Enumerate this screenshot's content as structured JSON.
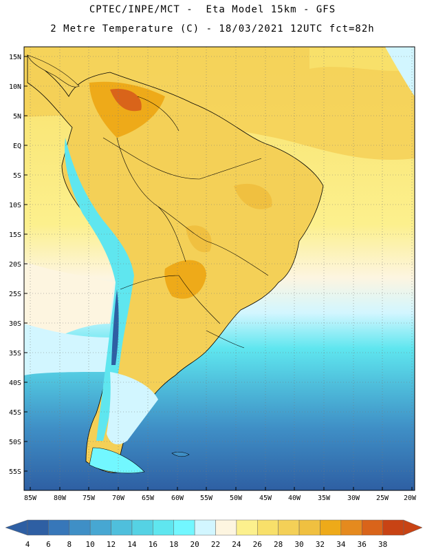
{
  "header": {
    "line1": "CPTEC/INPE/MCT -  Eta Model 15km - GFS",
    "line2": "2 Metre Temperature (C) - 18/03/2021 12UTC fct=82h"
  },
  "map": {
    "region": "South America",
    "lat_labels": [
      "15N",
      "10N",
      "5N",
      "EQ",
      "5S",
      "10S",
      "15S",
      "20S",
      "25S",
      "30S",
      "35S",
      "40S",
      "45S",
      "50S",
      "55S"
    ],
    "lon_labels": [
      "85W",
      "80W",
      "75W",
      "70W",
      "65W",
      "60W",
      "55W",
      "50W",
      "45W",
      "40W",
      "35W",
      "30W",
      "25W",
      "20W"
    ]
  },
  "colorbar": {
    "labels": [
      "4",
      "6",
      "8",
      "10",
      "12",
      "14",
      "16",
      "18",
      "20",
      "22",
      "24",
      "26",
      "28",
      "30",
      "32",
      "34",
      "36",
      "38"
    ],
    "colors": [
      "#2e5fa3",
      "#3777b9",
      "#3f8fc6",
      "#47a7d2",
      "#4fbfdc",
      "#55d2e4",
      "#5fe6ef",
      "#72f7ff",
      "#d2f6ff",
      "#fdf5e0",
      "#fcf08d",
      "#f8e06a",
      "#f4d057",
      "#f0c040",
      "#eeaa19",
      "#e58a1e",
      "#d9641a",
      "#c84314"
    ]
  }
}
